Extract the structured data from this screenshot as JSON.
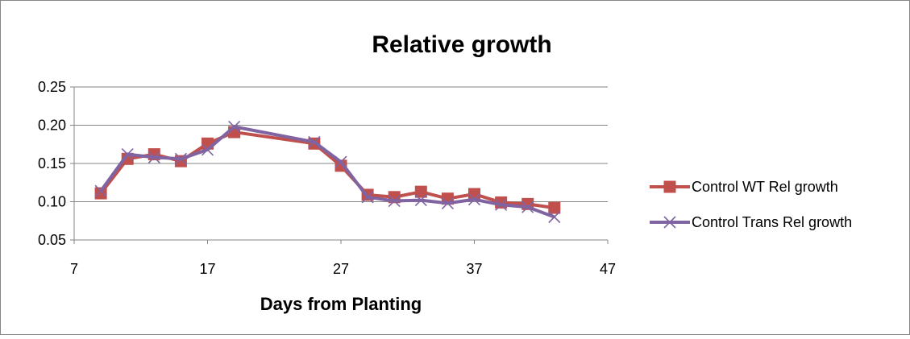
{
  "chart_data": {
    "type": "line",
    "title": "Relative growth",
    "xlabel": "Days from Planting",
    "ylabel": "",
    "xlim": [
      7,
      47
    ],
    "ylim": [
      0.05,
      0.25
    ],
    "x_ticks": [
      "7",
      "17",
      "27",
      "37",
      "47"
    ],
    "y_ticks": [
      "0.05",
      "0.10",
      "0.15",
      "0.20",
      "0.25"
    ],
    "grid": "horizontal",
    "legend_position": "right",
    "series": [
      {
        "name": "Control WT Rel growth",
        "color": "#C0504D",
        "marker": "square",
        "x": [
          9,
          11,
          13,
          15,
          17,
          19,
          25,
          27,
          29,
          31,
          33,
          35,
          37,
          39,
          41,
          43
        ],
        "y": [
          0.111,
          0.156,
          0.162,
          0.153,
          0.176,
          0.191,
          0.176,
          0.147,
          0.109,
          0.106,
          0.113,
          0.104,
          0.11,
          0.099,
          0.097,
          0.092
        ]
      },
      {
        "name": "Control Trans Rel growth",
        "color": "#8064A2",
        "marker": "x",
        "x": [
          9,
          11,
          13,
          15,
          17,
          19,
          25,
          27,
          29,
          31,
          33,
          35,
          37,
          39,
          41,
          43
        ],
        "y": [
          0.114,
          0.162,
          0.158,
          0.156,
          0.168,
          0.198,
          0.178,
          0.152,
          0.106,
          0.101,
          0.102,
          0.098,
          0.103,
          0.096,
          0.093,
          0.08
        ]
      }
    ]
  }
}
